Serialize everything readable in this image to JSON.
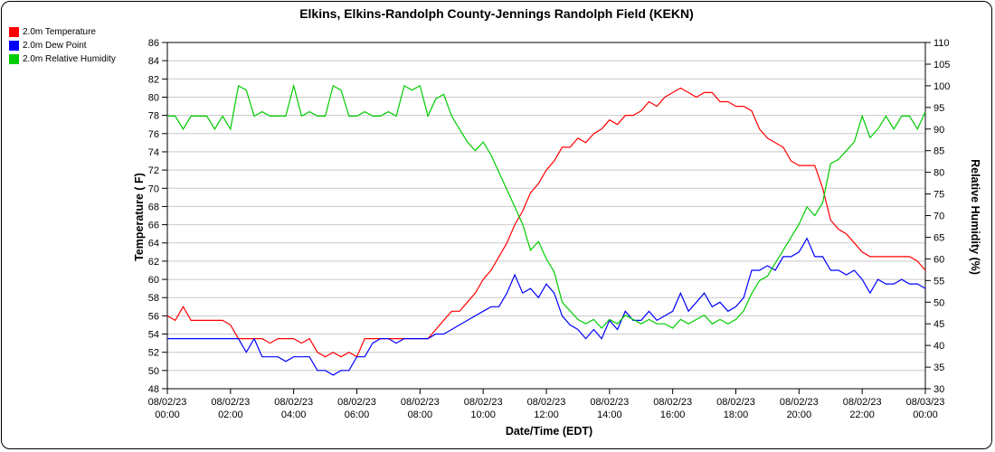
{
  "chart_data": {
    "type": "line",
    "title": "Elkins, Elkins-Randolph County-Jennings Randolph Field (KEKN)",
    "xlabel": "Date/Time (EDT)",
    "ylabel_left": "Temperature ( F)",
    "ylabel_right": "Relative Humidity (%)",
    "grid": "horizontal",
    "legend_position": "top-left",
    "y_left": {
      "min": 48,
      "max": 86,
      "step": 2
    },
    "y_right": {
      "min": 30,
      "max": 110,
      "step": 5
    },
    "x_hours": [
      0,
      24
    ],
    "x_tick_hours": [
      0,
      2,
      4,
      6,
      8,
      10,
      12,
      14,
      16,
      18,
      20,
      22,
      24
    ],
    "x_ticks": [
      {
        "date": "08/02/23",
        "time": "00:00"
      },
      {
        "date": "08/02/23",
        "time": "02:00"
      },
      {
        "date": "08/02/23",
        "time": "04:00"
      },
      {
        "date": "08/02/23",
        "time": "06:00"
      },
      {
        "date": "08/02/23",
        "time": "08:00"
      },
      {
        "date": "08/02/23",
        "time": "10:00"
      },
      {
        "date": "08/02/23",
        "time": "12:00"
      },
      {
        "date": "08/02/23",
        "time": "14:00"
      },
      {
        "date": "08/02/23",
        "time": "16:00"
      },
      {
        "date": "08/02/23",
        "time": "18:00"
      },
      {
        "date": "08/02/23",
        "time": "20:00"
      },
      {
        "date": "08/02/23",
        "time": "22:00"
      },
      {
        "date": "08/03/23",
        "time": "00:00"
      }
    ],
    "series": [
      {
        "name": "2.0m Temperature",
        "color": "#ff0000",
        "axis": "left",
        "x_step_hours": 0.25,
        "values": [
          56,
          55.5,
          57,
          55.5,
          55.5,
          55.5,
          55.5,
          55.5,
          55,
          53.5,
          53.5,
          53.5,
          53.5,
          53,
          53.5,
          53.5,
          53.5,
          53,
          53.5,
          52,
          51.5,
          52,
          51.5,
          52,
          51.5,
          53.5,
          53.5,
          53.5,
          53.5,
          53.5,
          53.5,
          53.5,
          53.5,
          53.5,
          54.5,
          55.5,
          56.5,
          56.5,
          57.5,
          58.5,
          60,
          61,
          62.5,
          64,
          66,
          67.5,
          69.5,
          70.5,
          72,
          73,
          74.5,
          74.5,
          75.5,
          75,
          76,
          76.5,
          77.5,
          77,
          78,
          78,
          78.5,
          79.5,
          79,
          80,
          80.5,
          81,
          80.5,
          80,
          80.5,
          80.5,
          79.5,
          79.5,
          79,
          79,
          78.5,
          76.5,
          75.5,
          75,
          74.5,
          73,
          72.5,
          72.5,
          72.5,
          70,
          66.5,
          65.5,
          65,
          64,
          63,
          62.5,
          62.5,
          62.5,
          62.5,
          62.5,
          62.5,
          62,
          61
        ]
      },
      {
        "name": "2.0m Dew Point",
        "color": "#0000ff",
        "axis": "left",
        "x_step_hours": 0.25,
        "values": [
          53.5,
          53.5,
          53.5,
          53.5,
          53.5,
          53.5,
          53.5,
          53.5,
          53.5,
          53.5,
          52,
          53.5,
          51.5,
          51.5,
          51.5,
          51,
          51.5,
          51.5,
          51.5,
          50,
          50,
          49.5,
          50,
          50,
          51.5,
          51.5,
          53,
          53.5,
          53.5,
          53,
          53.5,
          53.5,
          53.5,
          53.5,
          54,
          54,
          54.5,
          55,
          55.5,
          56,
          56.5,
          57,
          57,
          58.5,
          60.5,
          58.5,
          59,
          58,
          59.5,
          58.5,
          56,
          55,
          54.5,
          53.5,
          54.5,
          53.5,
          55.5,
          54.5,
          56.5,
          55.5,
          55.5,
          56.5,
          55.5,
          56,
          56.5,
          58.5,
          56.5,
          57.5,
          58.5,
          57,
          57.5,
          56.5,
          57,
          58,
          61,
          61,
          61.5,
          61,
          62.5,
          62.5,
          63,
          64.5,
          62.5,
          62.5,
          61,
          61,
          60.5,
          61,
          60,
          58.5,
          60,
          59.5,
          59.5,
          60,
          59.5,
          59.5,
          59
        ]
      },
      {
        "name": "2.0m Relative Humidity",
        "color": "#00cc00",
        "axis": "right",
        "x_step_hours": 0.25,
        "values": [
          93,
          93,
          90,
          93,
          93,
          93,
          90,
          93,
          90,
          100,
          99,
          93,
          94,
          93,
          93,
          93,
          100,
          93,
          94,
          93,
          93,
          100,
          99,
          93,
          93,
          94,
          93,
          93,
          94,
          93,
          100,
          99,
          100,
          93,
          97,
          98,
          93,
          90,
          87,
          85,
          87,
          84,
          80,
          76,
          72,
          68,
          62,
          64,
          60,
          57,
          50,
          48,
          46,
          45,
          46,
          44,
          46,
          45,
          47,
          46,
          45,
          46,
          45,
          45,
          44,
          46,
          45,
          46,
          47,
          45,
          46,
          45,
          46,
          48,
          52,
          55,
          56,
          59,
          62,
          65,
          68,
          72,
          70,
          73,
          82,
          83,
          85,
          87,
          93,
          88,
          90,
          93,
          90,
          93,
          93,
          90,
          94
        ]
      }
    ]
  }
}
